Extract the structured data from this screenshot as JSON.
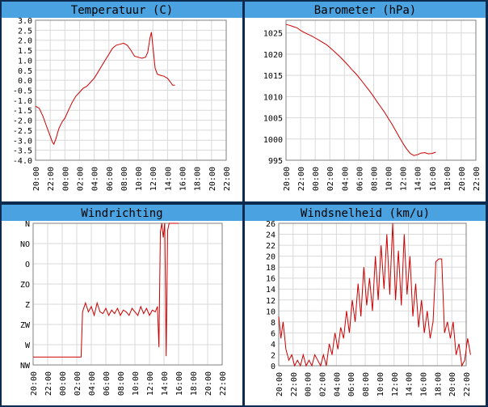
{
  "colors": {
    "frame": "#0d2b4e",
    "panel": "#ffffff",
    "title_bar": "#4aa3e0",
    "grid": "#d9d9d9",
    "axis": "#7f7f7f",
    "line": "#cc0000",
    "text": "#000000"
  },
  "chart_data": [
    {
      "type": "line",
      "title": "Temperatuur (C)",
      "x_ticks": [
        "20:00",
        "22:00",
        "00:00",
        "02:00",
        "04:00",
        "06:00",
        "08:00",
        "10:00",
        "12:00",
        "14:00",
        "16:00",
        "18:00",
        "20:00",
        "22:00"
      ],
      "y_ticks": [
        "3.0",
        "2.5",
        "2.0",
        "1.5",
        "1.0",
        "0.5",
        "0.0",
        "-0.5",
        "-1.0",
        "-1.5",
        "-2.0",
        "-2.5",
        "-3.0",
        "-3.5",
        "-4.0"
      ],
      "ylim": [
        -4.0,
        3.0
      ],
      "grid": true,
      "series": [
        {
          "values": [
            [
              0,
              -1.3
            ],
            [
              0.5,
              -1.4
            ],
            [
              1,
              -1.8
            ],
            [
              1.5,
              -2.3
            ],
            [
              2,
              -2.8
            ],
            [
              2.3,
              -3.1
            ],
            [
              2.5,
              -3.2
            ],
            [
              2.8,
              -2.9
            ],
            [
              3.2,
              -2.4
            ],
            [
              3.6,
              -2.1
            ],
            [
              4,
              -1.9
            ],
            [
              4.5,
              -1.5
            ],
            [
              5,
              -1.1
            ],
            [
              5.5,
              -0.8
            ],
            [
              6,
              -0.6
            ],
            [
              6.5,
              -0.4
            ],
            [
              7,
              -0.3
            ],
            [
              7.5,
              -0.1
            ],
            [
              8,
              0.1
            ],
            [
              8.5,
              0.4
            ],
            [
              9,
              0.7
            ],
            [
              9.5,
              1.0
            ],
            [
              10,
              1.3
            ],
            [
              10.5,
              1.6
            ],
            [
              11,
              1.75
            ],
            [
              11.5,
              1.8
            ],
            [
              12,
              1.85
            ],
            [
              12.5,
              1.75
            ],
            [
              13,
              1.5
            ],
            [
              13.5,
              1.2
            ],
            [
              14,
              1.15
            ],
            [
              14.5,
              1.1
            ],
            [
              15,
              1.15
            ],
            [
              15.3,
              1.4
            ],
            [
              15.6,
              2.1
            ],
            [
              15.8,
              2.4
            ],
            [
              16,
              1.7
            ],
            [
              16.3,
              0.6
            ],
            [
              16.6,
              0.3
            ],
            [
              17,
              0.25
            ],
            [
              17.5,
              0.2
            ],
            [
              18,
              0.1
            ],
            [
              18.4,
              -0.1
            ],
            [
              18.7,
              -0.25
            ],
            [
              19,
              -0.25
            ]
          ]
        }
      ]
    },
    {
      "type": "line",
      "title": "Barometer (hPa)",
      "x_ticks": [
        "20:00",
        "22:00",
        "00:00",
        "02:00",
        "04:00",
        "06:00",
        "08:00",
        "10:00",
        "12:00",
        "14:00",
        "16:00",
        "18:00",
        "20:00",
        "22:00"
      ],
      "y_ticks": [
        "1025",
        "1020",
        "1015",
        "1010",
        "1005",
        "1000",
        "995"
      ],
      "ylim": [
        995,
        1028
      ],
      "grid": true,
      "series": [
        {
          "values": [
            [
              0,
              1027
            ],
            [
              0.5,
              1026.8
            ],
            [
              1,
              1026.5
            ],
            [
              1.5,
              1026.2
            ],
            [
              2,
              1025.6
            ],
            [
              2.5,
              1025.1
            ],
            [
              3,
              1024.7
            ],
            [
              3.5,
              1024.3
            ],
            [
              4,
              1023.8
            ],
            [
              4.5,
              1023.3
            ],
            [
              5,
              1022.8
            ],
            [
              5.5,
              1022.3
            ],
            [
              6,
              1021.6
            ],
            [
              6.5,
              1020.8
            ],
            [
              7,
              1020.0
            ],
            [
              7.5,
              1019.2
            ],
            [
              8,
              1018.3
            ],
            [
              8.5,
              1017.4
            ],
            [
              9,
              1016.4
            ],
            [
              9.5,
              1015.5
            ],
            [
              10,
              1014.5
            ],
            [
              10.5,
              1013.4
            ],
            [
              11,
              1012.3
            ],
            [
              11.5,
              1011.2
            ],
            [
              12,
              1010.0
            ],
            [
              12.5,
              1008.7
            ],
            [
              13,
              1007.5
            ],
            [
              13.5,
              1006.3
            ],
            [
              14,
              1004.9
            ],
            [
              14.5,
              1003.5
            ],
            [
              15,
              1002.0
            ],
            [
              15.5,
              1000.5
            ],
            [
              16,
              999.0
            ],
            [
              16.5,
              997.7
            ],
            [
              17,
              996.6
            ],
            [
              17.5,
              996.1
            ],
            [
              18,
              996.3
            ],
            [
              18.5,
              996.7
            ],
            [
              19,
              996.8
            ],
            [
              19.5,
              996.5
            ],
            [
              20,
              996.6
            ],
            [
              20.5,
              996.9
            ]
          ]
        }
      ]
    },
    {
      "type": "line",
      "title": "Windrichting",
      "x_ticks": [
        "20:00",
        "22:00",
        "00:00",
        "02:00",
        "04:00",
        "06:00",
        "08:00",
        "10:00",
        "12:00",
        "14:00",
        "16:00",
        "18:00",
        "20:00",
        "22:00"
      ],
      "y_ticks": [
        "N",
        "NO",
        "O",
        "ZO",
        "Z",
        "ZW",
        "W",
        "NW"
      ],
      "ylim": [
        0,
        8
      ],
      "grid": true,
      "series": [
        {
          "values": [
            [
              0,
              0.45
            ],
            [
              6.6,
              0.45
            ],
            [
              6.8,
              3
            ],
            [
              7.2,
              3.5
            ],
            [
              7.6,
              3
            ],
            [
              8,
              3.3
            ],
            [
              8.4,
              2.8
            ],
            [
              8.8,
              3.5
            ],
            [
              9.2,
              3
            ],
            [
              9.6,
              2.9
            ],
            [
              10,
              3.2
            ],
            [
              10.4,
              2.8
            ],
            [
              10.8,
              3.1
            ],
            [
              11.2,
              2.9
            ],
            [
              11.6,
              3.2
            ],
            [
              12,
              2.8
            ],
            [
              12.4,
              3.1
            ],
            [
              12.8,
              3.0
            ],
            [
              13.2,
              2.8
            ],
            [
              13.6,
              3.2
            ],
            [
              14,
              3
            ],
            [
              14.4,
              2.8
            ],
            [
              14.8,
              3.3
            ],
            [
              15.2,
              2.9
            ],
            [
              15.6,
              3.2
            ],
            [
              16,
              2.8
            ],
            [
              16.4,
              3.1
            ],
            [
              16.8,
              3.0
            ],
            [
              17.1,
              3.3
            ],
            [
              17.3,
              1
            ],
            [
              17.5,
              7.5
            ],
            [
              17.7,
              8
            ],
            [
              17.9,
              7.2
            ],
            [
              18.1,
              8
            ],
            [
              18.3,
              0.5
            ],
            [
              18.5,
              7.6
            ],
            [
              18.7,
              8
            ],
            [
              19.2,
              8
            ],
            [
              20,
              8
            ]
          ]
        }
      ]
    },
    {
      "type": "line",
      "title": "Windsnelheid (km/u)",
      "x_ticks": [
        "20:00",
        "22:00",
        "00:00",
        "02:00",
        "04:00",
        "06:00",
        "08:00",
        "10:00",
        "12:00",
        "14:00",
        "16:00",
        "18:00",
        "20:00",
        "22:00"
      ],
      "y_ticks": [
        "26",
        "24",
        "22",
        "20",
        "18",
        "16",
        "14",
        "12",
        "10",
        "8",
        "6",
        "4",
        "2",
        "0"
      ],
      "ylim": [
        0,
        26
      ],
      "grid": true,
      "series": [
        {
          "values": [
            [
              0,
              9
            ],
            [
              0.3,
              5
            ],
            [
              0.6,
              8
            ],
            [
              1,
              3
            ],
            [
              1.4,
              1
            ],
            [
              1.8,
              2
            ],
            [
              2.2,
              0
            ],
            [
              2.6,
              1
            ],
            [
              3,
              0
            ],
            [
              3.4,
              2
            ],
            [
              3.8,
              0
            ],
            [
              4.2,
              1
            ],
            [
              4.6,
              0
            ],
            [
              5,
              2
            ],
            [
              5.4,
              1
            ],
            [
              5.8,
              0
            ],
            [
              6.2,
              2
            ],
            [
              6.6,
              0
            ],
            [
              7,
              4
            ],
            [
              7.4,
              2
            ],
            [
              7.8,
              6
            ],
            [
              8.2,
              3
            ],
            [
              8.6,
              7
            ],
            [
              9,
              5
            ],
            [
              9.4,
              10
            ],
            [
              9.8,
              6
            ],
            [
              10.2,
              12
            ],
            [
              10.6,
              8
            ],
            [
              11,
              15
            ],
            [
              11.4,
              9
            ],
            [
              11.8,
              18
            ],
            [
              12.2,
              11
            ],
            [
              12.6,
              16
            ],
            [
              13,
              10
            ],
            [
              13.4,
              20
            ],
            [
              13.8,
              12
            ],
            [
              14.2,
              22
            ],
            [
              14.6,
              14
            ],
            [
              15,
              24
            ],
            [
              15.4,
              13
            ],
            [
              15.8,
              26
            ],
            [
              16.2,
              12
            ],
            [
              16.6,
              21
            ],
            [
              17,
              11
            ],
            [
              17.4,
              24
            ],
            [
              17.8,
              13
            ],
            [
              18.2,
              20
            ],
            [
              18.6,
              9
            ],
            [
              19,
              15
            ],
            [
              19.4,
              7
            ],
            [
              19.8,
              12
            ],
            [
              20.2,
              6
            ],
            [
              20.6,
              10
            ],
            [
              21,
              5
            ],
            [
              21.4,
              8
            ],
            [
              21.8,
              19
            ],
            [
              22.2,
              19.5
            ],
            [
              22.6,
              19.5
            ],
            [
              23,
              6
            ],
            [
              23.4,
              8
            ],
            [
              23.8,
              5
            ],
            [
              24.2,
              8
            ],
            [
              24.6,
              2
            ],
            [
              25,
              4
            ],
            [
              25.4,
              0
            ],
            [
              25.8,
              1
            ],
            [
              26.2,
              5
            ],
            [
              26.6,
              2
            ]
          ]
        }
      ]
    }
  ]
}
